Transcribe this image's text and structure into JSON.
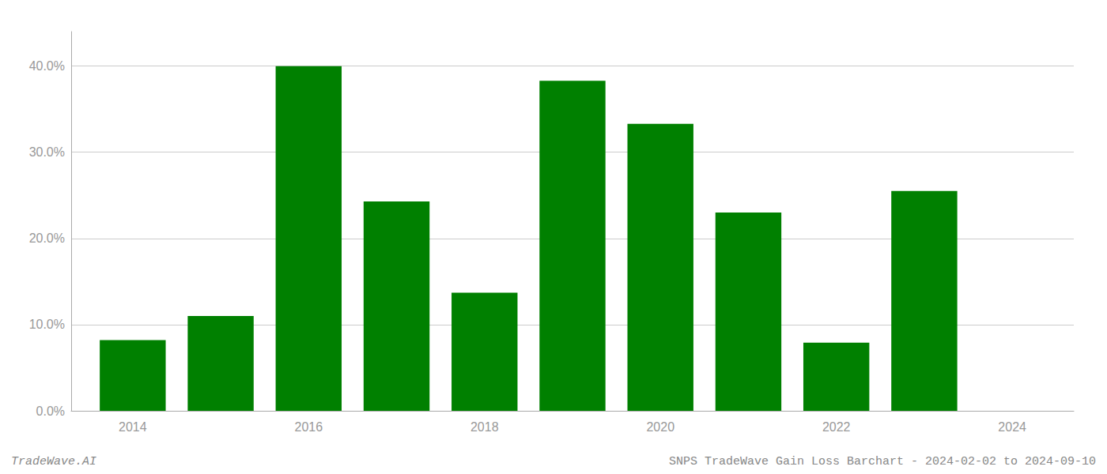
{
  "chart_data": {
    "type": "bar",
    "x": [
      2014,
      2015,
      2016,
      2017,
      2018,
      2019,
      2020,
      2021,
      2022,
      2023
    ],
    "values": [
      0.082,
      0.11,
      0.4,
      0.243,
      0.137,
      0.383,
      0.333,
      0.23,
      0.079,
      0.255
    ],
    "color": "#008000",
    "xlim": [
      2013.3,
      2024.7
    ],
    "xticks": [
      2014,
      2016,
      2018,
      2020,
      2022,
      2024
    ],
    "ylim": [
      0,
      0.44
    ],
    "yticks": [
      {
        "value": 0,
        "label": "0.0%"
      },
      {
        "value": 0.1,
        "label": "10.0%"
      },
      {
        "value": 0.2,
        "label": "20.0%"
      },
      {
        "value": 0.3,
        "label": "30.0%"
      },
      {
        "value": 0.4,
        "label": "40.0%"
      }
    ],
    "grid": true,
    "annotations": [
      "TradeWave.AI",
      "SNPS TradeWave Gain Loss Barchart - 2024-02-02 to 2024-09-10"
    ]
  }
}
